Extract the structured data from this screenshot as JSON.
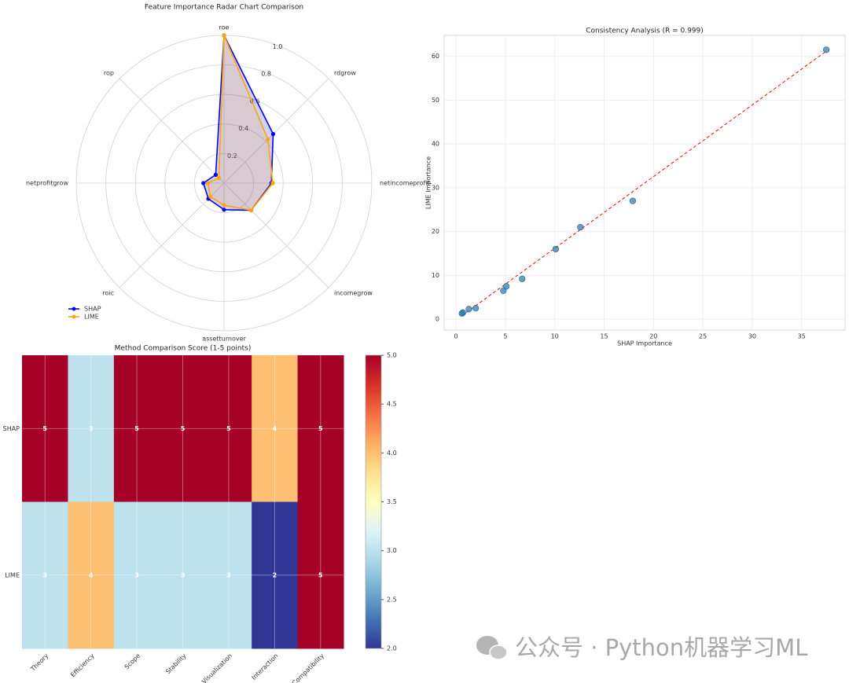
{
  "chart_data": [
    {
      "type": "radar",
      "title": "Feature Importance Radar Chart Comparison",
      "categories": [
        "roe",
        "rdgrow",
        "netincomeprofit",
        "incomegrow",
        "assetturnover",
        "roic",
        "netprofitgrow",
        "rop"
      ],
      "series": [
        {
          "name": "SHAP",
          "color": "#0000ff",
          "values": [
            1.0,
            0.47,
            0.32,
            0.26,
            0.18,
            0.15,
            0.14,
            0.08
          ]
        },
        {
          "name": "LIME",
          "color": "#ffa500",
          "values": [
            1.0,
            0.42,
            0.33,
            0.26,
            0.15,
            0.13,
            0.11,
            0.05
          ]
        }
      ],
      "rlim": [
        0,
        1
      ],
      "rticks": [
        0.2,
        0.4,
        0.6,
        0.8,
        {
          "value": 1,
          "label": "1.0"
        }
      ],
      "grid": true,
      "legend": "lower left"
    },
    {
      "type": "scatter",
      "title": "Consistency Analysis (R = 0.999)",
      "xlabel": "SHAP Importance",
      "ylabel": "LIME Importance",
      "x": [
        37.5,
        17.9,
        12.6,
        10.1,
        6.7,
        5.1,
        4.8,
        2.0,
        1.3,
        0.7,
        0.6
      ],
      "y": [
        61.5,
        27.0,
        21.0,
        16.0,
        9.2,
        7.5,
        6.5,
        2.5,
        2.3,
        1.5,
        1.3
      ],
      "color": "#1f77b4",
      "fit_line": {
        "x": [
          0.6,
          37.5
        ],
        "y": [
          0.8,
          61.2
        ],
        "color": "#ff0000"
      },
      "xlim": [
        -1.2,
        39.4
      ],
      "xticks": [
        0,
        5,
        10,
        15,
        20,
        25,
        30,
        35
      ],
      "ylim": [
        -2.5,
        64.8
      ],
      "yticks": [
        0,
        10,
        20,
        30,
        40,
        50,
        60
      ],
      "grid": true
    },
    {
      "type": "heatmap",
      "title": "Method Comparison Score (1-5 points)",
      "rows": [
        "SHAP",
        "LIME"
      ],
      "columns": [
        "Theory",
        "Efficiency",
        "Scope",
        "Stability",
        "Visualization",
        "Interaction",
        "Compatibility"
      ],
      "values": [
        [
          5,
          3,
          5,
          5,
          5,
          4,
          5
        ],
        [
          3,
          4,
          3,
          3,
          3,
          2,
          5
        ]
      ],
      "colorscale": [
        "#313695",
        "#4575b4",
        "#74add1",
        "#abd9e9",
        "#e0f3f8",
        "#ffffbf",
        "#fee090",
        "#fdae61",
        "#f46d43",
        "#d73027",
        "#a50026"
      ],
      "zlim": [
        2,
        5
      ],
      "zticks": [
        {
          "value": 2,
          "label": "2.0"
        },
        2.5,
        {
          "value": 3,
          "label": "3.0"
        },
        3.5,
        {
          "value": 4,
          "label": "4.0"
        },
        4.5,
        {
          "value": 5,
          "label": "5.0"
        }
      ]
    }
  ],
  "watermark": "公众号 · Python机器学习ML"
}
